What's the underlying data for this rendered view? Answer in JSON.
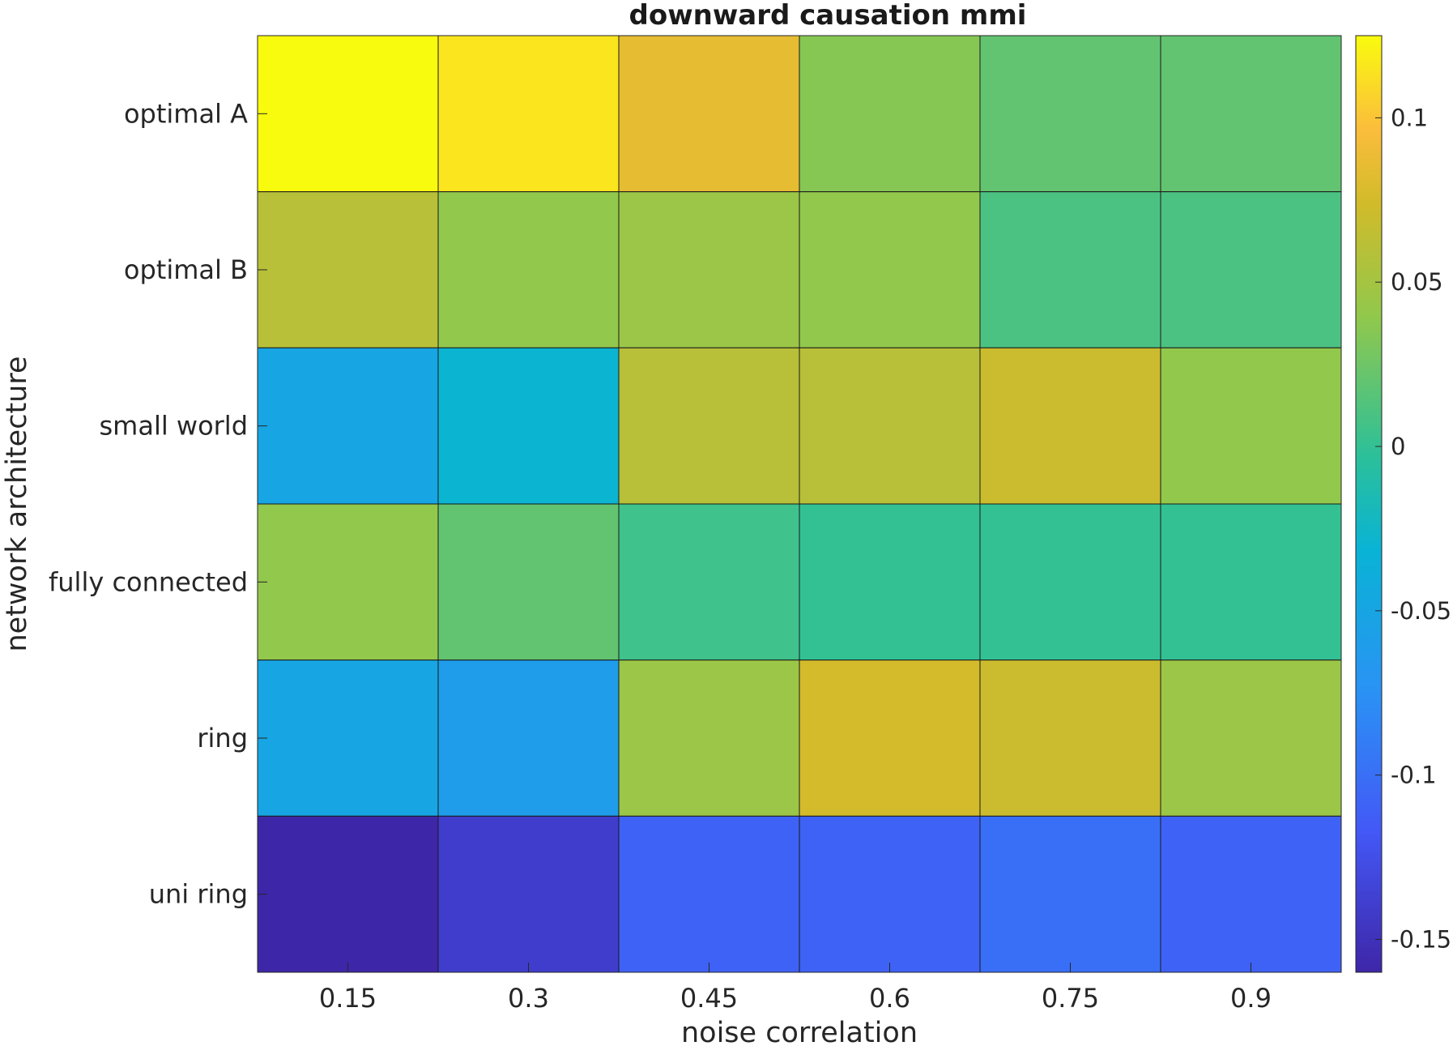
{
  "chart_data": {
    "type": "heatmap",
    "title": "downward causation mmi",
    "xlabel": "noise correlation",
    "ylabel": "network architecture",
    "x_categories": [
      "0.15",
      "0.3",
      "0.45",
      "0.6",
      "0.75",
      "0.9"
    ],
    "y_categories": [
      "optimal A",
      "optimal B",
      "small world",
      "fully connected",
      "ring",
      "uni ring"
    ],
    "values": [
      [
        0.125,
        0.115,
        0.085,
        0.035,
        0.02,
        0.02
      ],
      [
        0.06,
        0.04,
        0.045,
        0.04,
        0.01,
        0.01
      ],
      [
        -0.05,
        -0.03,
        0.06,
        0.06,
        0.07,
        0.04
      ],
      [
        0.04,
        0.02,
        0.005,
        0.0,
        0.0,
        0.0
      ],
      [
        -0.05,
        -0.06,
        0.045,
        0.075,
        0.07,
        0.045
      ],
      [
        -0.16,
        -0.14,
        -0.11,
        -0.11,
        -0.1,
        -0.11
      ]
    ],
    "colorbar": {
      "range": [
        -0.16,
        0.125
      ],
      "ticks": [
        0.1,
        0.05,
        0,
        -0.05,
        -0.1,
        -0.15
      ],
      "tick_labels": [
        "0.1",
        "0.05",
        "0",
        "-0.05",
        "-0.1",
        "-0.15"
      ],
      "colormap": "parula"
    },
    "grid": false
  }
}
